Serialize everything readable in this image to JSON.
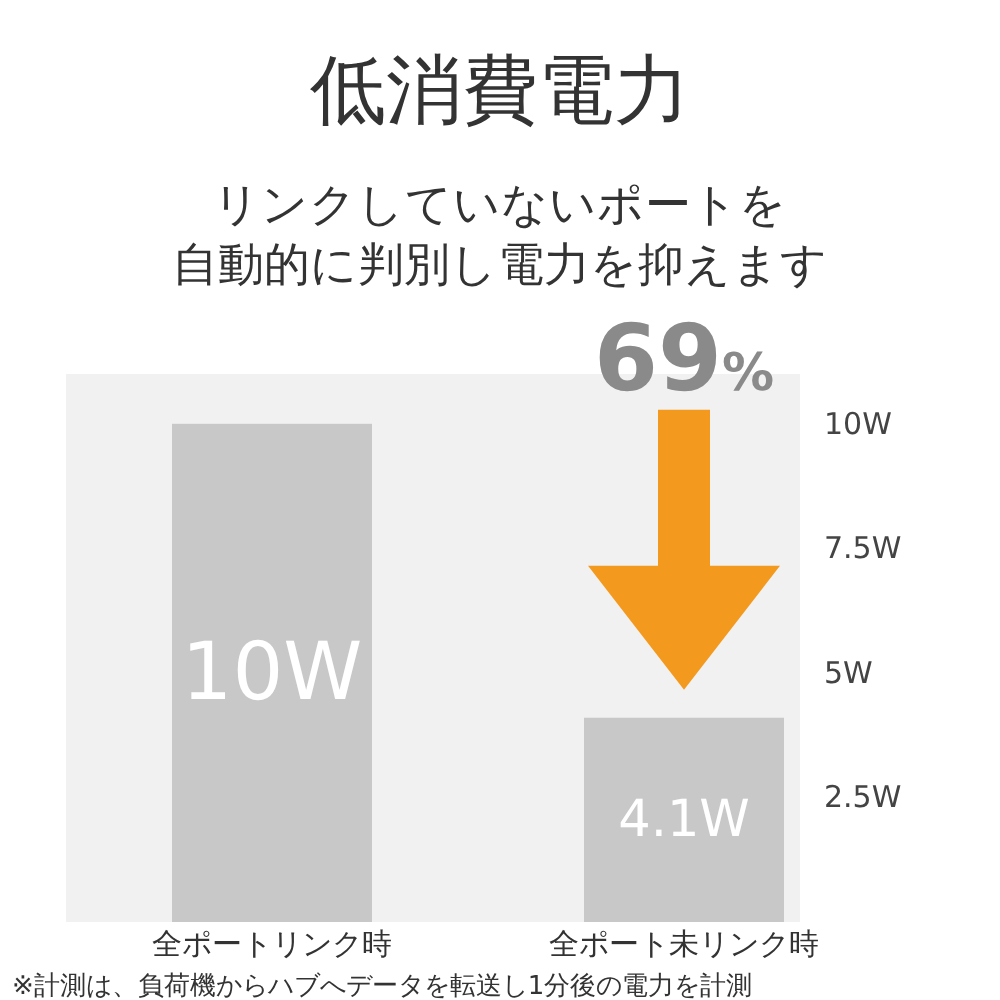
{
  "chart_data": {
    "type": "bar",
    "title": "低消費電力",
    "subtitle": "リンクしていないポートを自動的に判別し電力を抑えます",
    "categories": [
      "全ポートリンク時",
      "全ポート未リンク時"
    ],
    "values": [
      10,
      4.1
    ],
    "value_labels": [
      "10W",
      "4.1W"
    ],
    "color": "#c8c8c8",
    "ylim": [
      0,
      11
    ],
    "yticks": [
      {
        "value": 2.5,
        "label": "2.5W"
      },
      {
        "value": 5,
        "label": "5W"
      },
      {
        "value": 7.5,
        "label": "7.5W"
      },
      {
        "value": 10,
        "label": "10W"
      }
    ],
    "grid": false,
    "annotations": [
      "69%",
      "※計測は、負荷機からハブへデータを転送し1分後の電力を計測"
    ]
  }
}
